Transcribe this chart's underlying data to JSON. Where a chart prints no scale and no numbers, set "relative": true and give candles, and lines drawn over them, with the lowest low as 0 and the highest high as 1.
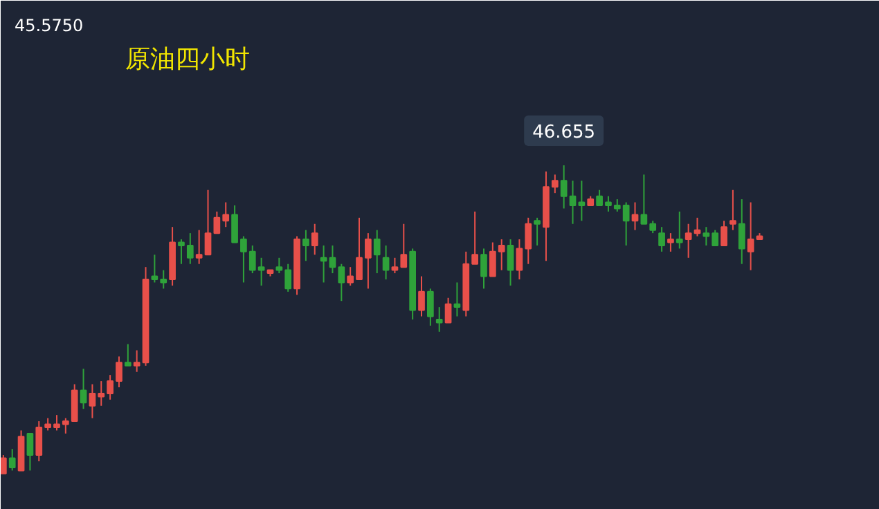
{
  "chart_data": {
    "type": "candlestick",
    "title": "原油四小时",
    "relative": true,
    "annotations": [
      "45.5750",
      {
        "text": "46.655",
        "y": 1
      }
    ],
    "categories": [
      null,
      null,
      null,
      null,
      null,
      null,
      null,
      null,
      null,
      null,
      null,
      null,
      null,
      null,
      null,
      null,
      null,
      null,
      null,
      null,
      null,
      null,
      null,
      null,
      null,
      null,
      null,
      null,
      null,
      null,
      null,
      null,
      null,
      null,
      null,
      null,
      null,
      null,
      null,
      null,
      null,
      null,
      null,
      null,
      null,
      null,
      null,
      null,
      null,
      null,
      null,
      null,
      null,
      null,
      null,
      null,
      null,
      null,
      null,
      null,
      null,
      null,
      null,
      null,
      null,
      null,
      null,
      null,
      null,
      null,
      null,
      null,
      null,
      null,
      null,
      null,
      null,
      null,
      null,
      null,
      null,
      null,
      null,
      null,
      null,
      null
    ],
    "ohlc": [
      [
        0,
        0.06,
        0,
        0.05
      ],
      [
        0.05,
        0.08,
        0.01,
        0.02
      ],
      [
        0.01,
        0.14,
        0.01,
        0.12
      ],
      [
        0.13,
        0.13,
        0.01,
        0.06
      ],
      [
        0.06,
        0.17,
        0.04,
        0.15
      ],
      [
        0.15,
        0.18,
        0.14,
        0.16
      ],
      [
        0.15,
        0.19,
        0.14,
        0.16
      ],
      [
        0.16,
        0.18,
        0.13,
        0.17
      ],
      [
        0.17,
        0.29,
        0.17,
        0.27
      ],
      [
        0.27,
        0.34,
        0.21,
        0.23
      ],
      [
        0.22,
        0.29,
        0.18,
        0.26
      ],
      [
        0.25,
        0.3,
        0.22,
        0.26
      ],
      [
        0.26,
        0.32,
        0.24,
        0.3
      ],
      [
        0.3,
        0.38,
        0.28,
        0.36
      ],
      [
        0.36,
        0.42,
        0.35,
        0.35
      ],
      [
        0.35,
        0.4,
        0.33,
        0.36
      ],
      [
        0.36,
        0.67,
        0.35,
        0.63
      ],
      [
        0.64,
        0.71,
        0.62,
        0.63
      ],
      [
        0.63,
        0.66,
        0.6,
        0.62
      ],
      [
        0.63,
        0.8,
        0.61,
        0.75
      ],
      [
        0.75,
        0.76,
        0.68,
        0.74
      ],
      [
        0.74,
        0.78,
        0.68,
        0.7
      ],
      [
        0.7,
        0.79,
        0.68,
        0.71
      ],
      [
        0.71,
        0.92,
        0.71,
        0.78
      ],
      [
        0.78,
        0.85,
        0.78,
        0.83
      ],
      [
        0.82,
        0.88,
        0.8,
        0.84
      ],
      [
        0.84,
        0.87,
        0.75,
        0.75
      ],
      [
        0.76,
        0.77,
        0.62,
        0.72
      ],
      [
        0.72,
        0.74,
        0.65,
        0.66
      ],
      [
        0.67,
        0.7,
        0.61,
        0.66
      ],
      [
        0.65,
        0.66,
        0.64,
        0.66
      ],
      [
        0.67,
        0.7,
        0.65,
        0.66
      ],
      [
        0.66,
        0.68,
        0.59,
        0.6
      ],
      [
        0.6,
        0.77,
        0.58,
        0.76
      ],
      [
        0.76,
        0.79,
        0.69,
        0.74
      ],
      [
        0.74,
        0.81,
        0.71,
        0.78
      ],
      [
        0.7,
        0.74,
        0.62,
        0.69
      ],
      [
        0.7,
        0.74,
        0.65,
        0.67
      ],
      [
        0.67,
        0.68,
        0.56,
        0.62
      ],
      [
        0.62,
        0.67,
        0.61,
        0.64
      ],
      [
        0.63,
        0.83,
        0.63,
        0.7
      ],
      [
        0.7,
        0.78,
        0.6,
        0.76
      ],
      [
        0.76,
        0.79,
        0.65,
        0.71
      ],
      [
        0.7,
        0.74,
        0.63,
        0.66
      ],
      [
        0.66,
        0.7,
        0.65,
        0.67
      ],
      [
        0.67,
        0.81,
        0.67,
        0.71
      ],
      [
        0.72,
        0.73,
        0.5,
        0.53
      ],
      [
        0.53,
        0.64,
        0.51,
        0.59
      ],
      [
        0.59,
        0.6,
        0.48,
        0.51
      ],
      [
        0.5,
        0.54,
        0.46,
        0.49
      ],
      [
        0.49,
        0.57,
        0.49,
        0.55
      ],
      [
        0.55,
        0.62,
        0.51,
        0.54
      ],
      [
        0.53,
        0.72,
        0.51,
        0.68
      ],
      [
        0.68,
        0.85,
        0.68,
        0.71
      ],
      [
        0.71,
        0.73,
        0.6,
        0.64
      ],
      [
        0.64,
        0.75,
        0.64,
        0.72
      ],
      [
        0.72,
        0.76,
        0.66,
        0.74
      ],
      [
        0.74,
        0.76,
        0.61,
        0.66
      ],
      [
        0.66,
        0.76,
        0.63,
        0.73
      ],
      [
        0.73,
        0.83,
        0.68,
        0.81
      ],
      [
        0.82,
        0.83,
        0.74,
        0.81
      ],
      [
        0.8,
        0.98,
        0.69,
        0.93
      ],
      [
        0.93,
        0.97,
        0.91,
        0.95
      ],
      [
        0.95,
        1,
        0.86,
        0.9
      ],
      [
        0.9,
        0.95,
        0.81,
        0.87
      ],
      [
        0.88,
        0.95,
        0.82,
        0.87
      ],
      [
        0.87,
        0.9,
        0.87,
        0.89
      ],
      [
        0.9,
        0.92,
        0.87,
        0.87
      ],
      [
        0.88,
        0.9,
        0.85,
        0.87
      ],
      [
        0.87,
        0.89,
        0.85,
        0.86
      ],
      [
        0.87,
        0.88,
        0.74,
        0.82
      ],
      [
        0.82,
        0.88,
        0.79,
        0.84
      ],
      [
        0.84,
        0.97,
        0.81,
        0.81
      ],
      [
        0.81,
        0.82,
        0.78,
        0.79
      ],
      [
        0.78,
        0.8,
        0.72,
        0.74
      ],
      [
        0.75,
        0.78,
        0.72,
        0.76
      ],
      [
        0.76,
        0.85,
        0.73,
        0.75
      ],
      [
        0.76,
        0.81,
        0.7,
        0.78
      ],
      [
        0.78,
        0.83,
        0.77,
        0.79
      ],
      [
        0.78,
        0.8,
        0.74,
        0.77
      ],
      [
        0.78,
        0.79,
        0.74,
        0.74
      ],
      [
        0.74,
        0.82,
        0.74,
        0.8
      ],
      [
        0.81,
        0.92,
        0.79,
        0.82
      ],
      [
        0.81,
        0.89,
        0.68,
        0.73
      ],
      [
        0.72,
        0.88,
        0.66,
        0.76
      ],
      [
        0.76,
        0.78,
        0.76,
        0.77
      ]
    ],
    "colors": [
      "#e8504a",
      "#2fa33a",
      "#e8504a",
      "#2fa33a",
      "#e8504a",
      "#e8504a",
      "#e8504a",
      "#e8504a",
      "#e8504a",
      "#2fa33a",
      "#e8504a",
      "#e8504a",
      "#e8504a",
      "#e8504a",
      "#2fa33a",
      "#e8504a",
      "#e8504a",
      "#2fa33a",
      "#2fa33a",
      "#e8504a",
      "#2fa33a",
      "#2fa33a",
      "#e8504a",
      "#e8504a",
      "#e8504a",
      "#e8504a",
      "#2fa33a",
      "#2fa33a",
      "#2fa33a",
      "#2fa33a",
      "#e8504a",
      "#2fa33a",
      "#2fa33a",
      "#e8504a",
      "#2fa33a",
      "#e8504a",
      "#2fa33a",
      "#2fa33a",
      "#2fa33a",
      "#e8504a",
      "#e8504a",
      "#e8504a",
      "#2fa33a",
      "#2fa33a",
      "#e8504a",
      "#e8504a",
      "#2fa33a",
      "#e8504a",
      "#2fa33a",
      "#2fa33a",
      "#e8504a",
      "#2fa33a",
      "#e8504a",
      "#e8504a",
      "#2fa33a",
      "#e8504a",
      "#e8504a",
      "#2fa33a",
      "#e8504a",
      "#e8504a",
      "#2fa33a",
      "#e8504a",
      "#e8504a",
      "#2fa33a",
      "#2fa33a",
      "#2fa33a",
      "#e8504a",
      "#2fa33a",
      "#2fa33a",
      "#2fa33a",
      "#2fa33a",
      "#e8504a",
      "#2fa33a",
      "#2fa33a",
      "#2fa33a",
      "#e8504a",
      "#2fa33a",
      "#e8504a",
      "#e8504a",
      "#2fa33a",
      "#2fa33a",
      "#e8504a",
      "#e8504a",
      "#2fa33a",
      "#e8504a",
      "#e8504a"
    ]
  }
}
